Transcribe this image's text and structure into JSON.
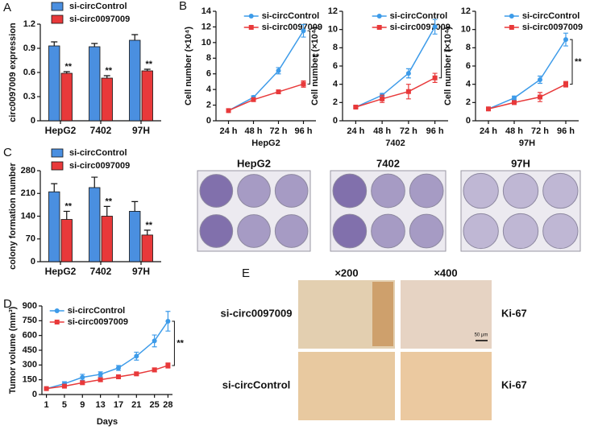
{
  "panel_labels": [
    "A",
    "B",
    "C",
    "D",
    "E"
  ],
  "chart_data": [
    {
      "type": "bar",
      "ylabel": "circ0097009 expression",
      "categories": [
        "HepG2",
        "7402",
        "97H"
      ],
      "series": [
        {
          "name": "si-circControl",
          "color": "#4a8fe0",
          "values": [
            0.93,
            0.92,
            1.0
          ],
          "errors": [
            0.05,
            0.04,
            0.07
          ]
        },
        {
          "name": "si-circ0097009",
          "color": "#e8393a",
          "values": [
            0.59,
            0.53,
            0.62
          ],
          "errors": [
            0.02,
            0.03,
            0.02
          ]
        }
      ],
      "significance": [
        "**",
        "**",
        "**"
      ],
      "ylim": [
        0,
        1.2
      ],
      "yticks": [
        0,
        0.3,
        0.6,
        0.9,
        1.2
      ]
    },
    {
      "type": "line",
      "ylabel": "Cell number (×10⁴)",
      "xlabel": "HepG2",
      "categories": [
        "24 h",
        "48 h",
        "72 h",
        "96 h"
      ],
      "series": [
        {
          "name": "si-circControl",
          "color": "#3d9be9",
          "values": [
            1.3,
            3.0,
            6.4,
            11.5
          ],
          "errors": [
            0.1,
            0.2,
            0.4,
            0.8
          ]
        },
        {
          "name": "si-circ0097009",
          "color": "#e8393a",
          "values": [
            1.3,
            2.7,
            3.7,
            4.7
          ],
          "errors": [
            0.1,
            0.2,
            0.2,
            0.4
          ]
        }
      ],
      "significance": "**",
      "ylim": [
        0,
        14
      ],
      "yticks": [
        0,
        2,
        4,
        6,
        8,
        10,
        12,
        14
      ]
    },
    {
      "type": "line",
      "ylabel": "Cell number (×10⁴)",
      "xlabel": "7402",
      "categories": [
        "24 h",
        "48 h",
        "72 h",
        "96 h"
      ],
      "series": [
        {
          "name": "si-circControl",
          "color": "#3d9be9",
          "values": [
            1.5,
            2.8,
            5.2,
            10.3
          ],
          "errors": [
            0.1,
            0.2,
            0.5,
            0.8
          ]
        },
        {
          "name": "si-circ0097009",
          "color": "#e8393a",
          "values": [
            1.5,
            2.4,
            3.2,
            4.7
          ],
          "errors": [
            0.1,
            0.4,
            0.8,
            0.5
          ]
        }
      ],
      "significance": "**",
      "ylim": [
        0,
        12
      ],
      "yticks": [
        0,
        2,
        4,
        6,
        8,
        10,
        12
      ]
    },
    {
      "type": "line",
      "ylabel": "Cell number (×10⁴)",
      "xlabel": "97H",
      "categories": [
        "24 h",
        "48 h",
        "72 h",
        "96 h"
      ],
      "series": [
        {
          "name": "si-circControl",
          "color": "#3d9be9",
          "values": [
            1.3,
            2.5,
            4.5,
            8.9
          ],
          "errors": [
            0.1,
            0.2,
            0.4,
            0.7
          ]
        },
        {
          "name": "si-circ0097009",
          "color": "#e8393a",
          "values": [
            1.3,
            2.0,
            2.6,
            4.0
          ],
          "errors": [
            0.1,
            0.2,
            0.5,
            0.3
          ]
        }
      ],
      "significance": "**",
      "ylim": [
        0,
        12
      ],
      "yticks": [
        0,
        2,
        4,
        6,
        8,
        10,
        12
      ]
    },
    {
      "type": "bar",
      "ylabel": "colony formation number",
      "categories": [
        "HepG2",
        "7402",
        "97H"
      ],
      "series": [
        {
          "name": "si-circControl",
          "color": "#4a8fe0",
          "values": [
            215,
            228,
            155
          ],
          "errors": [
            25,
            32,
            30
          ]
        },
        {
          "name": "si-circ0097009",
          "color": "#e8393a",
          "values": [
            130,
            140,
            82
          ],
          "errors": [
            25,
            30,
            15
          ]
        }
      ],
      "significance": [
        "**",
        "**",
        "**"
      ],
      "ylim": [
        0,
        280
      ],
      "yticks": [
        0,
        70,
        140,
        210,
        280
      ]
    },
    {
      "type": "line",
      "ylabel": "Tumor  volume (mm³)",
      "xlabel": "Days",
      "x": [
        1,
        5,
        9,
        13,
        17,
        21,
        25,
        28
      ],
      "series": [
        {
          "name": "si-circControl",
          "color": "#3d9be9",
          "values": [
            60,
            110,
            175,
            205,
            270,
            390,
            545,
            745
          ],
          "errors": [
            5,
            20,
            30,
            25,
            25,
            40,
            60,
            100
          ]
        },
        {
          "name": "si-circ0097009",
          "color": "#e8393a",
          "values": [
            60,
            85,
            120,
            150,
            180,
            210,
            250,
            295
          ],
          "errors": [
            5,
            10,
            15,
            15,
            15,
            15,
            20,
            25
          ]
        }
      ],
      "significance": "**",
      "xlim": [
        0,
        29
      ],
      "xticks": [
        1,
        5,
        9,
        13,
        17,
        21,
        25,
        28
      ],
      "ylim": [
        0,
        900
      ],
      "yticks": [
        0,
        150,
        300,
        450,
        600,
        750,
        900
      ]
    }
  ],
  "colony_images": {
    "labels": [
      "HepG2",
      "7402",
      "97H"
    ]
  },
  "ihc_images": {
    "magnifications": [
      "×200",
      "×400"
    ],
    "rows": [
      "si-circ0097009",
      "si-circControl"
    ],
    "markers": [
      "Ki-67",
      "Ki-67"
    ],
    "scale_bar": "50 μm"
  }
}
